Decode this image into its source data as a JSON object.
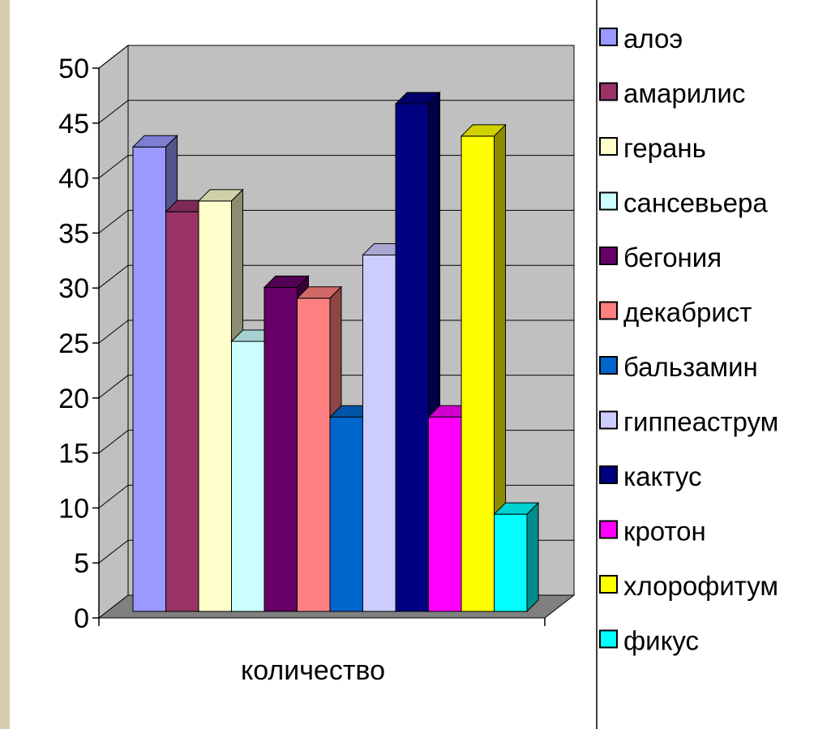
{
  "chart_data": {
    "type": "bar",
    "categories": [
      "количество"
    ],
    "series": [
      {
        "name": "алоэ",
        "values": [
          43
        ],
        "color": "#9999ff"
      },
      {
        "name": "амарилис",
        "values": [
          37
        ],
        "color": "#993366"
      },
      {
        "name": "герань",
        "values": [
          38
        ],
        "color": "#ffffcc"
      },
      {
        "name": "сансевьера",
        "values": [
          25
        ],
        "color": "#ccffff"
      },
      {
        "name": "бегония",
        "values": [
          30
        ],
        "color": "#660066"
      },
      {
        "name": "декабрист",
        "values": [
          29
        ],
        "color": "#ff8080"
      },
      {
        "name": "бальзамин",
        "values": [
          18
        ],
        "color": "#0066cc"
      },
      {
        "name": "гиппеаструм",
        "values": [
          33
        ],
        "color": "#ccccff"
      },
      {
        "name": "кактус",
        "values": [
          47
        ],
        "color": "#000080"
      },
      {
        "name": "кротон",
        "values": [
          18
        ],
        "color": "#ff00ff"
      },
      {
        "name": "хлорофитум",
        "values": [
          44
        ],
        "color": "#ffff00"
      },
      {
        "name": "фикус",
        "values": [
          9
        ],
        "color": "#00ffff"
      }
    ],
    "ylim": [
      0,
      50
    ],
    "yticks": [
      0,
      5,
      10,
      15,
      20,
      25,
      30,
      35,
      40,
      45,
      50
    ],
    "grid": true,
    "three_d": true,
    "wall_color": "#c0c0c0",
    "floor_color": "#808080",
    "legend_position": "right"
  }
}
